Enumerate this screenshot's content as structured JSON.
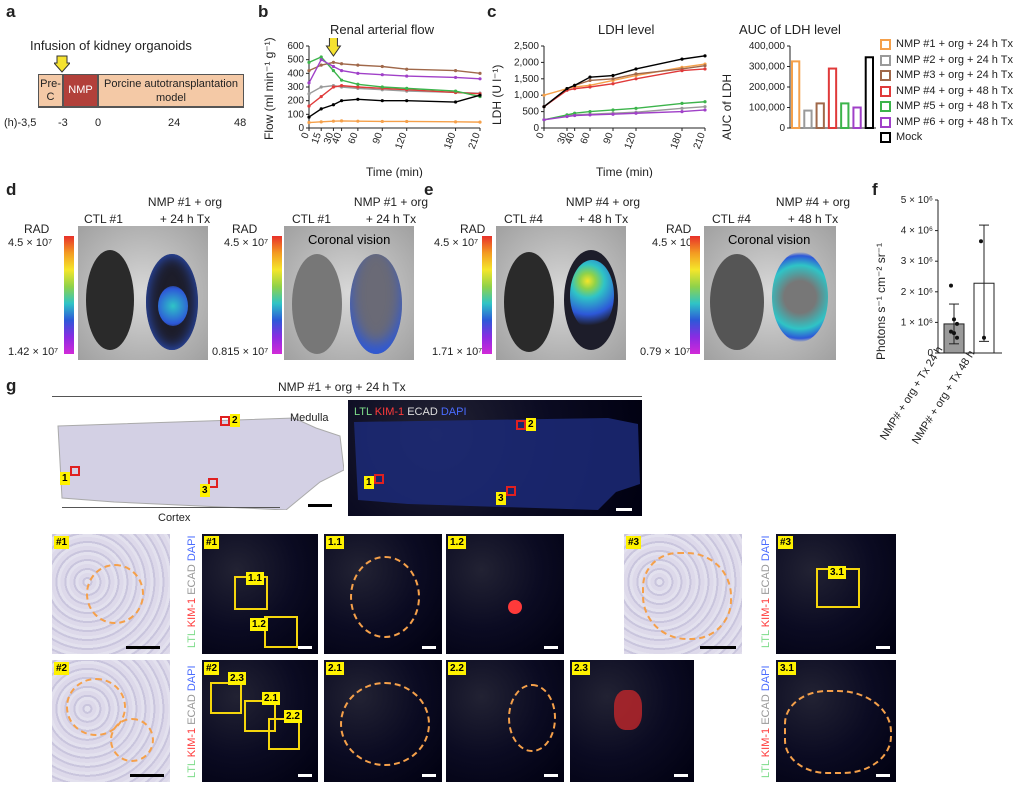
{
  "panels": {
    "a": "a",
    "b": "b",
    "c": "c",
    "d": "d",
    "e": "e",
    "f": "f",
    "g": "g"
  },
  "panel_a": {
    "title": "Infusion of kidney organoids",
    "boxes": [
      "Pre-C",
      "NMP",
      "Porcine autotransplantation model"
    ],
    "ticks": [
      "(h)-3,5",
      "-3",
      "0",
      "24",
      "48"
    ],
    "colors": {
      "prec": "#f4c9a6",
      "nmp": "#b2403a",
      "model": "#f4c9a6",
      "arrow": "#f5e230"
    }
  },
  "chart_data": [
    {
      "type": "line",
      "title": "Renal arterial flow",
      "xlabel": "Time (min)",
      "ylabel": "Flow (ml min⁻¹ g⁻¹)",
      "x": [
        0,
        15,
        30,
        40,
        60,
        90,
        120,
        180,
        210
      ],
      "x_ticks": [
        "0",
        "15",
        "30",
        "40",
        "60",
        "90",
        "120",
        "180",
        "210"
      ],
      "y_ticks": [
        "0",
        "100",
        "200",
        "300",
        "400",
        "500",
        "600"
      ],
      "ylim": [
        0,
        600
      ],
      "series": [
        {
          "name": "NMP #1 + org + 24 h Tx",
          "color": "#f5a04a",
          "values": [
            40,
            45,
            50,
            52,
            50,
            48,
            48,
            45,
            43
          ]
        },
        {
          "name": "NMP #2 + org + 24 h Tx",
          "color": "#9a9a9a",
          "values": [
            250,
            300,
            310,
            300,
            290,
            280,
            270,
            260,
            255
          ]
        },
        {
          "name": "NMP #3 + org + 24 h Tx",
          "color": "#a0684a",
          "values": [
            420,
            460,
            480,
            470,
            460,
            450,
            430,
            420,
            400
          ]
        },
        {
          "name": "NMP #4 + org + 48 h Tx",
          "color": "#e03a3a",
          "values": [
            160,
            230,
            300,
            310,
            300,
            290,
            280,
            260,
            250
          ]
        },
        {
          "name": "NMP #5 + org + 48 h Tx",
          "color": "#3cb44b",
          "values": [
            480,
            520,
            420,
            350,
            320,
            300,
            290,
            270,
            230
          ]
        },
        {
          "name": "NMP #6 + org + 48 h Tx",
          "color": "#a040c8",
          "values": [
            330,
            500,
            450,
            420,
            400,
            390,
            380,
            370,
            360
          ]
        },
        {
          "name": "Mock",
          "color": "#000000",
          "values": [
            80,
            140,
            170,
            200,
            210,
            200,
            200,
            190,
            240
          ]
        }
      ]
    },
    {
      "type": "line",
      "title": "LDH level",
      "xlabel": "Time (min)",
      "ylabel": "LDH (U l⁻¹)",
      "x": [
        0,
        30,
        40,
        60,
        90,
        120,
        180,
        210
      ],
      "x_ticks": [
        "0",
        "30",
        "40",
        "60",
        "90",
        "120",
        "180",
        "210"
      ],
      "y_ticks": [
        "0",
        "500",
        "1,000",
        "1,500",
        "2,000",
        "2,500"
      ],
      "ylim": [
        0,
        2500
      ],
      "series": [
        {
          "name": "NMP #1 + org + 24 h Tx",
          "color": "#f5a04a",
          "values": [
            1000,
            1200,
            1250,
            1300,
            1450,
            1600,
            1850,
            1950
          ]
        },
        {
          "name": "NMP #2 + org + 24 h Tx",
          "color": "#9a9a9a",
          "values": [
            250,
            380,
            400,
            420,
            450,
            480,
            600,
            650
          ]
        },
        {
          "name": "NMP #3 + org + 24 h Tx",
          "color": "#a0684a",
          "values": [
            650,
            1200,
            1300,
            1450,
            1500,
            1650,
            1800,
            1900
          ]
        },
        {
          "name": "NMP #4 + org + 48 h Tx",
          "color": "#e03a3a",
          "values": [
            650,
            1150,
            1200,
            1250,
            1350,
            1500,
            1750,
            1800
          ]
        },
        {
          "name": "NMP #5 + org + 48 h Tx",
          "color": "#3cb44b",
          "values": [
            250,
            400,
            450,
            500,
            550,
            600,
            750,
            800
          ]
        },
        {
          "name": "NMP #6 + org + 48 h Tx",
          "color": "#a040c8",
          "values": [
            250,
            350,
            380,
            400,
            420,
            450,
            500,
            550
          ]
        },
        {
          "name": "Mock",
          "color": "#000000",
          "values": [
            650,
            1200,
            1300,
            1550,
            1600,
            1800,
            2100,
            2200
          ]
        }
      ]
    },
    {
      "type": "bar",
      "title": "AUC of LDH level",
      "ylabel": "AUC of LDH",
      "categories": [
        "NMP #1 + org + 24 h Tx",
        "NMP #2 + org + 24 h Tx",
        "NMP #3 + org + 24 h Tx",
        "NMP #4 + org + 48 h Tx",
        "NMP #5 + org + 48 h Tx",
        "NMP #6 + org + 48 h Tx",
        "Mock"
      ],
      "values": [
        325000,
        85000,
        120000,
        290000,
        120000,
        100000,
        345000
      ],
      "colors": [
        "#f5a04a",
        "#9a9a9a",
        "#a0684a",
        "#e03a3a",
        "#3cb44b",
        "#a040c8",
        "#000000"
      ],
      "y_ticks": [
        "0",
        "100,000",
        "200,000",
        "300,000",
        "400,000"
      ],
      "ylim": [
        0,
        400000
      ]
    },
    {
      "type": "bar",
      "ylabel": "Photons s⁻¹ cm⁻² sr⁻¹",
      "categories": [
        "NMP# + org + Tx 24 h",
        "NMP# + org + Tx 48 h"
      ],
      "values": [
        950000,
        2280000
      ],
      "error_low": [
        650000,
        1900000
      ],
      "error_high": [
        650000,
        1900000
      ],
      "points": [
        [
          2200000,
          1100000,
          950000,
          700000,
          650000,
          500000
        ],
        [
          3650000,
          500000
        ]
      ],
      "colors": [
        "#9a9a9a",
        "#ffffff"
      ],
      "y_ticks": [
        "0",
        "1 × 10⁶",
        "2 × 10⁶",
        "3 × 10⁶",
        "4 × 10⁶",
        "5 × 10⁶"
      ],
      "ylim": [
        0,
        5000000
      ]
    }
  ],
  "legend": [
    {
      "label": "NMP #1 + org + 24 h Tx",
      "color": "#f5a04a"
    },
    {
      "label": "NMP #2 + org + 24 h Tx",
      "color": "#9a9a9a"
    },
    {
      "label": "NMP #3 + org + 24 h Tx",
      "color": "#a0684a"
    },
    {
      "label": "NMP #4 + org + 48 h Tx",
      "color": "#e03a3a"
    },
    {
      "label": "NMP #5 + org + 48 h Tx",
      "color": "#3cb44b"
    },
    {
      "label": "NMP #6 + org + 48 h Tx",
      "color": "#a040c8"
    },
    {
      "label": "Mock",
      "color": "#000000"
    }
  ],
  "panel_d": {
    "rad": "RAD",
    "left": {
      "ctl": "CTL #1",
      "nmp": "NMP #1 + org",
      "tx": "+ 24 h Tx",
      "max": "4.5 × 10⁷",
      "min": "1.42 × 10⁷"
    },
    "right": {
      "ctl": "CTL #1",
      "nmp": "NMP #1 + org",
      "tx": "+ 24 h Tx",
      "max": "4.5 × 10⁷",
      "min": "0.815 × 10⁷",
      "vision": "Coronal vision"
    }
  },
  "panel_e": {
    "rad": "RAD",
    "left": {
      "ctl": "CTL #4",
      "nmp": "NMP #4 + org",
      "tx": "+ 48 h Tx",
      "max": "4.5 × 10⁷",
      "min": "1.71 × 10⁷"
    },
    "right": {
      "ctl": "CTL #4",
      "nmp": "NMP #4 + org",
      "tx": "+ 48 h Tx",
      "max": "4.5 × 10⁷",
      "min": "0.79 × 10⁷",
      "vision": "Coronal vision"
    }
  },
  "panel_g": {
    "title": "NMP #1 + org + 24 h Tx",
    "medulla": "Medulla",
    "cortex": "Cortex",
    "stain": {
      "ltl": "LTL",
      "kim": "KIM-1",
      "ecad": "ECAD",
      "dapi": "DAPI"
    },
    "stain_colors": {
      "ltl": "#7ddc8a",
      "kim": "#ff3a3a",
      "ecad": "#dddddd",
      "dapi": "#4a6cff"
    },
    "region_tags": [
      "1",
      "2",
      "3"
    ],
    "tiles": [
      "#1",
      "#1",
      "1.1",
      "1.2",
      "#3",
      "#3",
      "#2",
      "#2",
      "2.1",
      "2.2",
      "2.3",
      "3.1"
    ],
    "inset_tags": [
      "1.1",
      "1.2",
      "2.1",
      "2.2",
      "2.3",
      "3.1"
    ]
  }
}
